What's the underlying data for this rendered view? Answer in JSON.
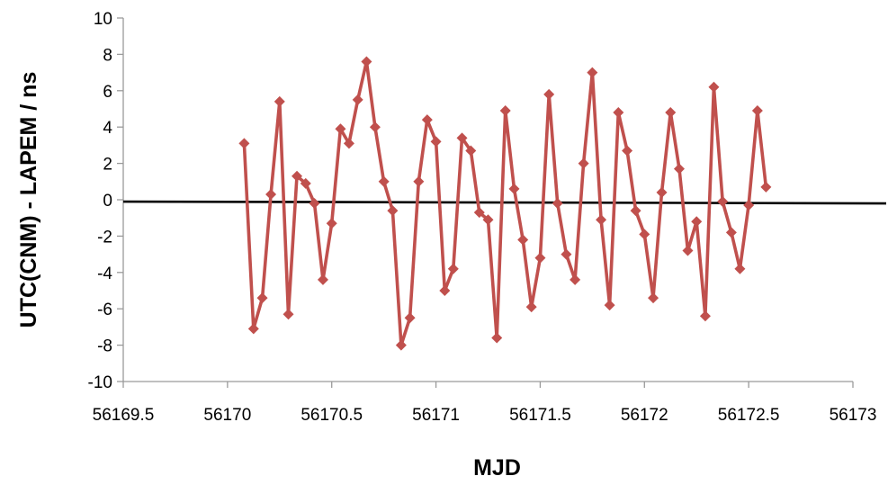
{
  "chart_data": {
    "type": "line",
    "title": "",
    "xlabel": "MJD",
    "ylabel": "UTC(CNM) - LAPEM / ns",
    "xlim": [
      56169.5,
      56173
    ],
    "ylim": [
      -10,
      10
    ],
    "x_ticks": [
      56169.5,
      56170,
      56170.5,
      56171,
      56171.5,
      56172,
      56172.5,
      56173
    ],
    "y_ticks": [
      -10,
      -8,
      -6,
      -4,
      -2,
      0,
      2,
      4,
      6,
      8,
      10
    ],
    "x_tick_labels": [
      "56169.5",
      "56170",
      "56170.5",
      "56171",
      "56171.5",
      "56172",
      "56172.5",
      "56173"
    ],
    "y_tick_labels": [
      "-10",
      "-8",
      "-6",
      "-4",
      "-2",
      "0",
      "2",
      "4",
      "6",
      "8",
      "10"
    ],
    "grid": false,
    "legend": "none",
    "series_color": "#c0504d",
    "reference_line": {
      "x": [
        56169.5,
        56173
      ],
      "y": [
        -0.1,
        -0.2
      ],
      "color": "#000000"
    },
    "series": [
      {
        "x": [
          56170.08,
          56170.125,
          56170.167,
          56170.208,
          56170.25,
          56170.292,
          56170.333,
          56170.375,
          56170.417,
          56170.458,
          56170.5,
          56170.542,
          56170.583,
          56170.625,
          56170.667,
          56170.708,
          56170.75,
          56170.792,
          56170.833,
          56170.875,
          56170.917,
          56170.958,
          56171.0,
          56171.042,
          56171.083,
          56171.125,
          56171.167,
          56171.208,
          56171.25,
          56171.292,
          56171.333,
          56171.375,
          56171.417,
          56171.458,
          56171.5,
          56171.542,
          56171.583,
          56171.625,
          56171.667,
          56171.708,
          56171.75,
          56171.792,
          56171.833,
          56171.875,
          56171.917,
          56171.958,
          56172.0,
          56172.042,
          56172.083,
          56172.125,
          56172.167,
          56172.208,
          56172.25,
          56172.292,
          56172.333,
          56172.375,
          56172.417,
          56172.458,
          56172.5,
          56172.542,
          56172.583
        ],
        "values": [
          3.1,
          -7.1,
          -5.4,
          0.3,
          5.4,
          -6.3,
          1.3,
          0.9,
          -0.2,
          -4.4,
          -1.3,
          3.9,
          3.1,
          5.5,
          7.6,
          4.0,
          1.0,
          -0.6,
          -8.0,
          -6.5,
          1.0,
          4.4,
          3.2,
          -5.0,
          -3.8,
          3.4,
          2.7,
          -0.7,
          -1.1,
          -7.6,
          4.9,
          0.6,
          -2.2,
          -5.9,
          -3.2,
          5.8,
          -0.2,
          -3.0,
          -4.4,
          2.0,
          7.0,
          -1.1,
          -5.8,
          4.8,
          2.7,
          -0.6,
          -1.9,
          -5.4,
          0.4,
          4.8,
          1.7,
          -2.8,
          -1.2,
          -6.4,
          6.2,
          -0.1,
          -1.8,
          -3.8,
          -0.3,
          4.9,
          0.7
        ]
      }
    ]
  }
}
